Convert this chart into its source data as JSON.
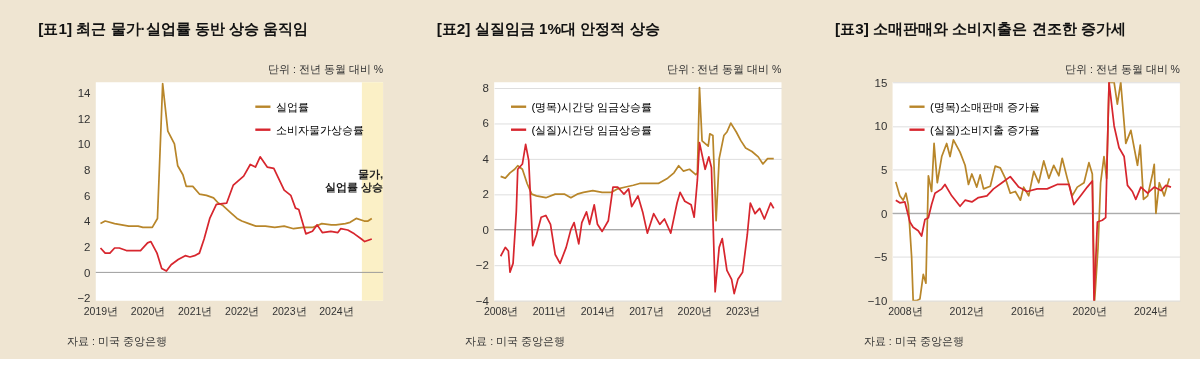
{
  "chart_data": [
    {
      "type": "line",
      "title": "[표1] 최근 물가·실업률 동반 상승 움직임",
      "subtitle": "단위 : 전년 동월 대비 %",
      "annotations": [
        "자료 : 미국 중앙은행"
      ],
      "xlim": [
        2018.9,
        2025.0
      ],
      "xticks": [
        {
          "value": 2019,
          "label": "2019년"
        },
        {
          "value": 2020,
          "label": "2020년"
        },
        {
          "value": 2021,
          "label": "2021년"
        },
        {
          "value": 2022,
          "label": "2022년"
        },
        {
          "value": 2023,
          "label": "2023년"
        },
        {
          "value": 2024,
          "label": "2024년"
        }
      ],
      "ylim": [
        -2.2,
        14.8
      ],
      "yticks": [
        -2,
        0,
        2,
        4,
        6,
        8,
        10,
        12,
        14
      ],
      "grid": false,
      "legend": "top right",
      "ref_lines": [
        {
          "axis": "y",
          "value": 0,
          "color": "#999999"
        }
      ],
      "bands": [
        {
          "axis": "x",
          "from": 2024.55,
          "to": 2025.0,
          "label": "물가,\n실업률 상승",
          "color": "#fbf0c6"
        }
      ],
      "series": [
        {
          "name": "실업률",
          "color": "#b8862a",
          "x": [
            2019.0,
            2019.1,
            2019.3,
            2019.6,
            2019.8,
            2019.9,
            2020.0,
            2020.1,
            2020.21,
            2020.32,
            2020.43,
            2020.57,
            2020.64,
            2020.75,
            2020.82,
            2020.96,
            2021.1,
            2021.25,
            2021.4,
            2021.5,
            2021.6,
            2021.75,
            2021.9,
            2022.0,
            2022.15,
            2022.3,
            2022.5,
            2022.7,
            2022.9,
            2023.1,
            2023.3,
            2023.5,
            2023.7,
            2023.9,
            2024.0,
            2024.2,
            2024.3,
            2024.43,
            2024.6,
            2024.68,
            2024.76
          ],
          "values": [
            3.8,
            4.0,
            3.8,
            3.6,
            3.6,
            3.5,
            3.5,
            3.5,
            4.2,
            14.7,
            11,
            10,
            8.3,
            7.6,
            6.7,
            6.7,
            6.1,
            6.0,
            5.8,
            5.4,
            5.2,
            4.7,
            4.2,
            4.0,
            3.8,
            3.6,
            3.6,
            3.5,
            3.6,
            3.4,
            3.5,
            3.5,
            3.8,
            3.7,
            3.7,
            3.8,
            3.9,
            4.2,
            4.0,
            4.0,
            4.2
          ]
        },
        {
          "name": "소비자물가상승률",
          "color": "#d7262e",
          "x": [
            2019.0,
            2019.1,
            2019.2,
            2019.3,
            2019.4,
            2019.55,
            2019.7,
            2019.85,
            2020.0,
            2020.07,
            2020.2,
            2020.3,
            2020.4,
            2020.5,
            2020.65,
            2020.8,
            2020.9,
            2021.0,
            2021.1,
            2021.2,
            2021.32,
            2021.46,
            2021.68,
            2021.82,
            2022.04,
            2022.18,
            2022.29,
            2022.39,
            2022.54,
            2022.68,
            2022.9,
            2023.04,
            2023.14,
            2023.21,
            2023.36,
            2023.5,
            2023.6,
            2023.71,
            2023.89,
            2024.04,
            2024.1,
            2024.25,
            2024.39,
            2024.54,
            2024.61,
            2024.76
          ],
          "values": [
            1.9,
            1.5,
            1.5,
            1.9,
            1.9,
            1.7,
            1.7,
            1.7,
            2.3,
            2.4,
            1.5,
            0.3,
            0.1,
            0.6,
            1.0,
            1.3,
            1.2,
            1.3,
            1.5,
            2.6,
            4.2,
            5.3,
            5.4,
            6.8,
            7.5,
            8.4,
            8.2,
            9.0,
            8.2,
            8.1,
            6.4,
            6.0,
            5.0,
            4.9,
            3.0,
            3.2,
            3.7,
            3.1,
            3.2,
            3.1,
            3.4,
            3.3,
            3.0,
            2.6,
            2.4,
            2.6
          ]
        }
      ]
    },
    {
      "type": "line",
      "title": "[표2] 실질임금 1%대 안정적 상승",
      "subtitle": "단위 : 전년 동월 대비 %",
      "annotations": [
        "자료 : 미국 중앙은행"
      ],
      "xlim": [
        2007.6,
        2025.4
      ],
      "xticks": [
        {
          "value": 2008,
          "label": "2008년"
        },
        {
          "value": 2011,
          "label": "2011년"
        },
        {
          "value": 2014,
          "label": "2014년"
        },
        {
          "value": 2017,
          "label": "2017년"
        },
        {
          "value": 2020,
          "label": "2020년"
        },
        {
          "value": 2023,
          "label": "2023년"
        }
      ],
      "ylim": [
        -4,
        8.3
      ],
      "yticks": [
        -4,
        -2,
        0,
        2,
        4,
        6,
        8
      ],
      "grid": "y",
      "legend": "top left",
      "ref_lines": [
        {
          "axis": "y",
          "value": 0,
          "color": "#999999"
        }
      ],
      "series": [
        {
          "name": "(명목)시간당 임금상승률",
          "color": "#b8862a",
          "x": [
            2008.0,
            2008.29,
            2008.58,
            2008.87,
            2009.06,
            2009.35,
            2009.64,
            2009.93,
            2010.22,
            2010.8,
            2011.38,
            2011.97,
            2012.35,
            2012.74,
            2013.13,
            2013.71,
            2014.29,
            2014.87,
            2015.25,
            2015.74,
            2016.22,
            2016.61,
            2017.19,
            2017.77,
            2018.35,
            2018.74,
            2019.03,
            2019.32,
            2019.7,
            2020.09,
            2020.19,
            2020.32,
            2020.48,
            2020.86,
            2020.96,
            2021.15,
            2021.35,
            2021.54,
            2021.83,
            2022.02,
            2022.26,
            2022.6,
            2022.89,
            2023.18,
            2023.57,
            2023.96,
            2024.25,
            2024.54,
            2024.92
          ],
          "values": [
            3.0,
            2.9,
            3.2,
            3.4,
            3.6,
            3.4,
            2.6,
            2.0,
            1.9,
            1.8,
            2.0,
            2.0,
            1.8,
            2.0,
            2.1,
            2.2,
            2.1,
            2.1,
            2.3,
            2.4,
            2.5,
            2.6,
            2.6,
            2.6,
            2.9,
            3.2,
            3.6,
            3.3,
            3.4,
            3.1,
            3.2,
            8.0,
            5.0,
            4.7,
            5.4,
            5.3,
            0.5,
            4.0,
            5.3,
            5.5,
            6.0,
            5.5,
            5.0,
            4.6,
            4.4,
            4.1,
            3.7,
            4.0,
            4.0
          ]
        },
        {
          "name": "(실질)시간당 임금상승률",
          "color": "#d7262e",
          "x": [
            2008.0,
            2008.29,
            2008.48,
            2008.58,
            2008.77,
            2008.97,
            2009.06,
            2009.35,
            2009.55,
            2009.74,
            2009.99,
            2010.22,
            2010.51,
            2010.8,
            2011.09,
            2011.38,
            2011.68,
            2012.06,
            2012.35,
            2012.55,
            2012.84,
            2013.03,
            2013.32,
            2013.51,
            2013.8,
            2014.0,
            2014.29,
            2014.67,
            2014.96,
            2015.25,
            2015.64,
            2015.93,
            2016.12,
            2016.51,
            2016.8,
            2017.09,
            2017.48,
            2017.86,
            2018.15,
            2018.54,
            2018.93,
            2019.12,
            2019.41,
            2019.8,
            2019.99,
            2020.19,
            2020.32,
            2020.67,
            2020.9,
            2021.06,
            2021.29,
            2021.54,
            2021.73,
            2022.02,
            2022.31,
            2022.47,
            2022.7,
            2022.99,
            2023.28,
            2023.47,
            2023.76,
            2024.05,
            2024.34,
            2024.73,
            2024.92
          ],
          "values": [
            -1.5,
            -1.0,
            -1.2,
            -2.4,
            -1.9,
            1.0,
            3.4,
            3.7,
            4.8,
            3.9,
            -0.9,
            -0.3,
            0.7,
            0.8,
            0.3,
            -1.4,
            -1.9,
            -1.0,
            0.0,
            0.4,
            -0.8,
            0.4,
            1.0,
            0.3,
            1.4,
            0.3,
            -0.1,
            0.5,
            2.4,
            2.4,
            2.0,
            2.3,
            1.3,
            1.9,
            1.0,
            -0.2,
            0.9,
            0.3,
            0.6,
            -0.2,
            1.5,
            2.1,
            1.6,
            1.4,
            0.7,
            2.8,
            4.9,
            3.4,
            4.1,
            3.5,
            -3.5,
            -1.0,
            -0.5,
            -2.3,
            -2.8,
            -3.6,
            -2.8,
            -2.4,
            -0.3,
            1.5,
            0.9,
            1.2,
            0.6,
            1.5,
            1.2
          ]
        }
      ]
    },
    {
      "type": "line",
      "title": "[표3] 소매판매와 소비지출은 견조한 증가세",
      "subtitle": "단위 : 전년 동월 대비 %",
      "annotations": [
        "자료 : 미국 중앙은행"
      ],
      "xlim": [
        2007.2,
        2025.9
      ],
      "xticks": [
        {
          "value": 2008,
          "label": "2008년"
        },
        {
          "value": 2012,
          "label": "2012년"
        },
        {
          "value": 2016,
          "label": "2016년"
        },
        {
          "value": 2020,
          "label": "2020년"
        },
        {
          "value": 2024,
          "label": "2024년"
        }
      ],
      "ylim": [
        -10,
        15
      ],
      "yticks": [
        -10,
        -5,
        0,
        5,
        10,
        15
      ],
      "grid": "y",
      "legend": "top left",
      "ref_lines": [
        {
          "axis": "y",
          "value": 0,
          "color": "#999999"
        }
      ],
      "series": [
        {
          "name": "(명목)소매판매 증가율",
          "color": "#b8862a",
          "x": [
            2007.41,
            2007.67,
            2007.89,
            2008.07,
            2008.22,
            2008.44,
            2008.54,
            2008.76,
            2008.98,
            2009.2,
            2009.37,
            2009.53,
            2009.74,
            2009.9,
            2010.11,
            2010.4,
            2010.72,
            2010.94,
            2011.16,
            2011.59,
            2011.92,
            2012.14,
            2012.36,
            2012.68,
            2012.9,
            2013.12,
            2013.56,
            2013.88,
            2014.21,
            2014.54,
            2014.86,
            2015.19,
            2015.52,
            2015.73,
            2016.06,
            2016.39,
            2016.71,
            2017.04,
            2017.37,
            2017.69,
            2018.02,
            2018.24,
            2018.57,
            2018.89,
            2019.22,
            2019.66,
            2019.98,
            2020.2,
            2020.35,
            2020.57,
            2020.74,
            2020.96,
            2021.13,
            2021.29,
            2021.62,
            2021.83,
            2022.05,
            2022.38,
            2022.71,
            2023.14,
            2023.32,
            2023.53,
            2023.8,
            2024.12,
            2024.23,
            2024.34,
            2024.56,
            2024.88,
            2025.21
          ],
          "values": [
            3.6,
            2.0,
            1.5,
            2.3,
            1.0,
            -5.0,
            -10,
            -10,
            -9.8,
            -7.0,
            -8.0,
            4.3,
            2.5,
            8.0,
            3.5,
            6.5,
            8.0,
            6.5,
            8.4,
            7.0,
            5.5,
            3.3,
            4.5,
            3.0,
            4.4,
            2.8,
            3.1,
            5.4,
            5.2,
            4.0,
            2.3,
            2.5,
            1.5,
            3.0,
            2.0,
            4.8,
            3.5,
            6.0,
            4.0,
            5.5,
            4.3,
            6.3,
            4.0,
            2.0,
            3.0,
            3.5,
            5.8,
            4.5,
            -10,
            -4,
            3.5,
            6.5,
            4.0,
            15,
            15,
            12.5,
            15,
            8.0,
            9.5,
            5.5,
            7.8,
            1.6,
            2.0,
            4.5,
            5.6,
            0.0,
            3.5,
            2.0,
            4.0
          ]
        },
        {
          "name": "(실질)소비지출 증가율",
          "color": "#d7262e",
          "x": [
            2007.41,
            2007.67,
            2008.0,
            2008.33,
            2008.54,
            2008.87,
            2009.09,
            2009.31,
            2009.53,
            2009.74,
            2009.96,
            2010.4,
            2010.61,
            2011.05,
            2011.59,
            2011.92,
            2012.36,
            2012.79,
            2013.34,
            2013.77,
            2014.32,
            2014.86,
            2015.41,
            2015.95,
            2016.61,
            2017.26,
            2017.91,
            2018.68,
            2019.0,
            2019.44,
            2019.87,
            2020.2,
            2020.31,
            2020.53,
            2020.85,
            2021.07,
            2021.29,
            2021.62,
            2021.94,
            2022.27,
            2022.49,
            2022.81,
            2023.03,
            2023.36,
            2023.8,
            2024.23,
            2024.67,
            2024.99,
            2025.32
          ],
          "values": [
            1.5,
            1.2,
            1.3,
            -1.0,
            -1.6,
            -2.0,
            -2.6,
            -0.7,
            -0.5,
            1.0,
            2.3,
            2.8,
            3.3,
            2.0,
            0.8,
            1.5,
            1.3,
            1.8,
            2.0,
            2.8,
            3.5,
            4.2,
            3.0,
            2.5,
            2.8,
            2.8,
            3.3,
            3.3,
            1.0,
            2.0,
            3.0,
            3.7,
            -10,
            -1.0,
            -0.8,
            -0.5,
            15,
            10,
            7.5,
            6.5,
            3.2,
            2.5,
            1.6,
            3.0,
            2.3,
            3.0,
            2.6,
            3.2,
            3.0
          ]
        }
      ]
    }
  ]
}
